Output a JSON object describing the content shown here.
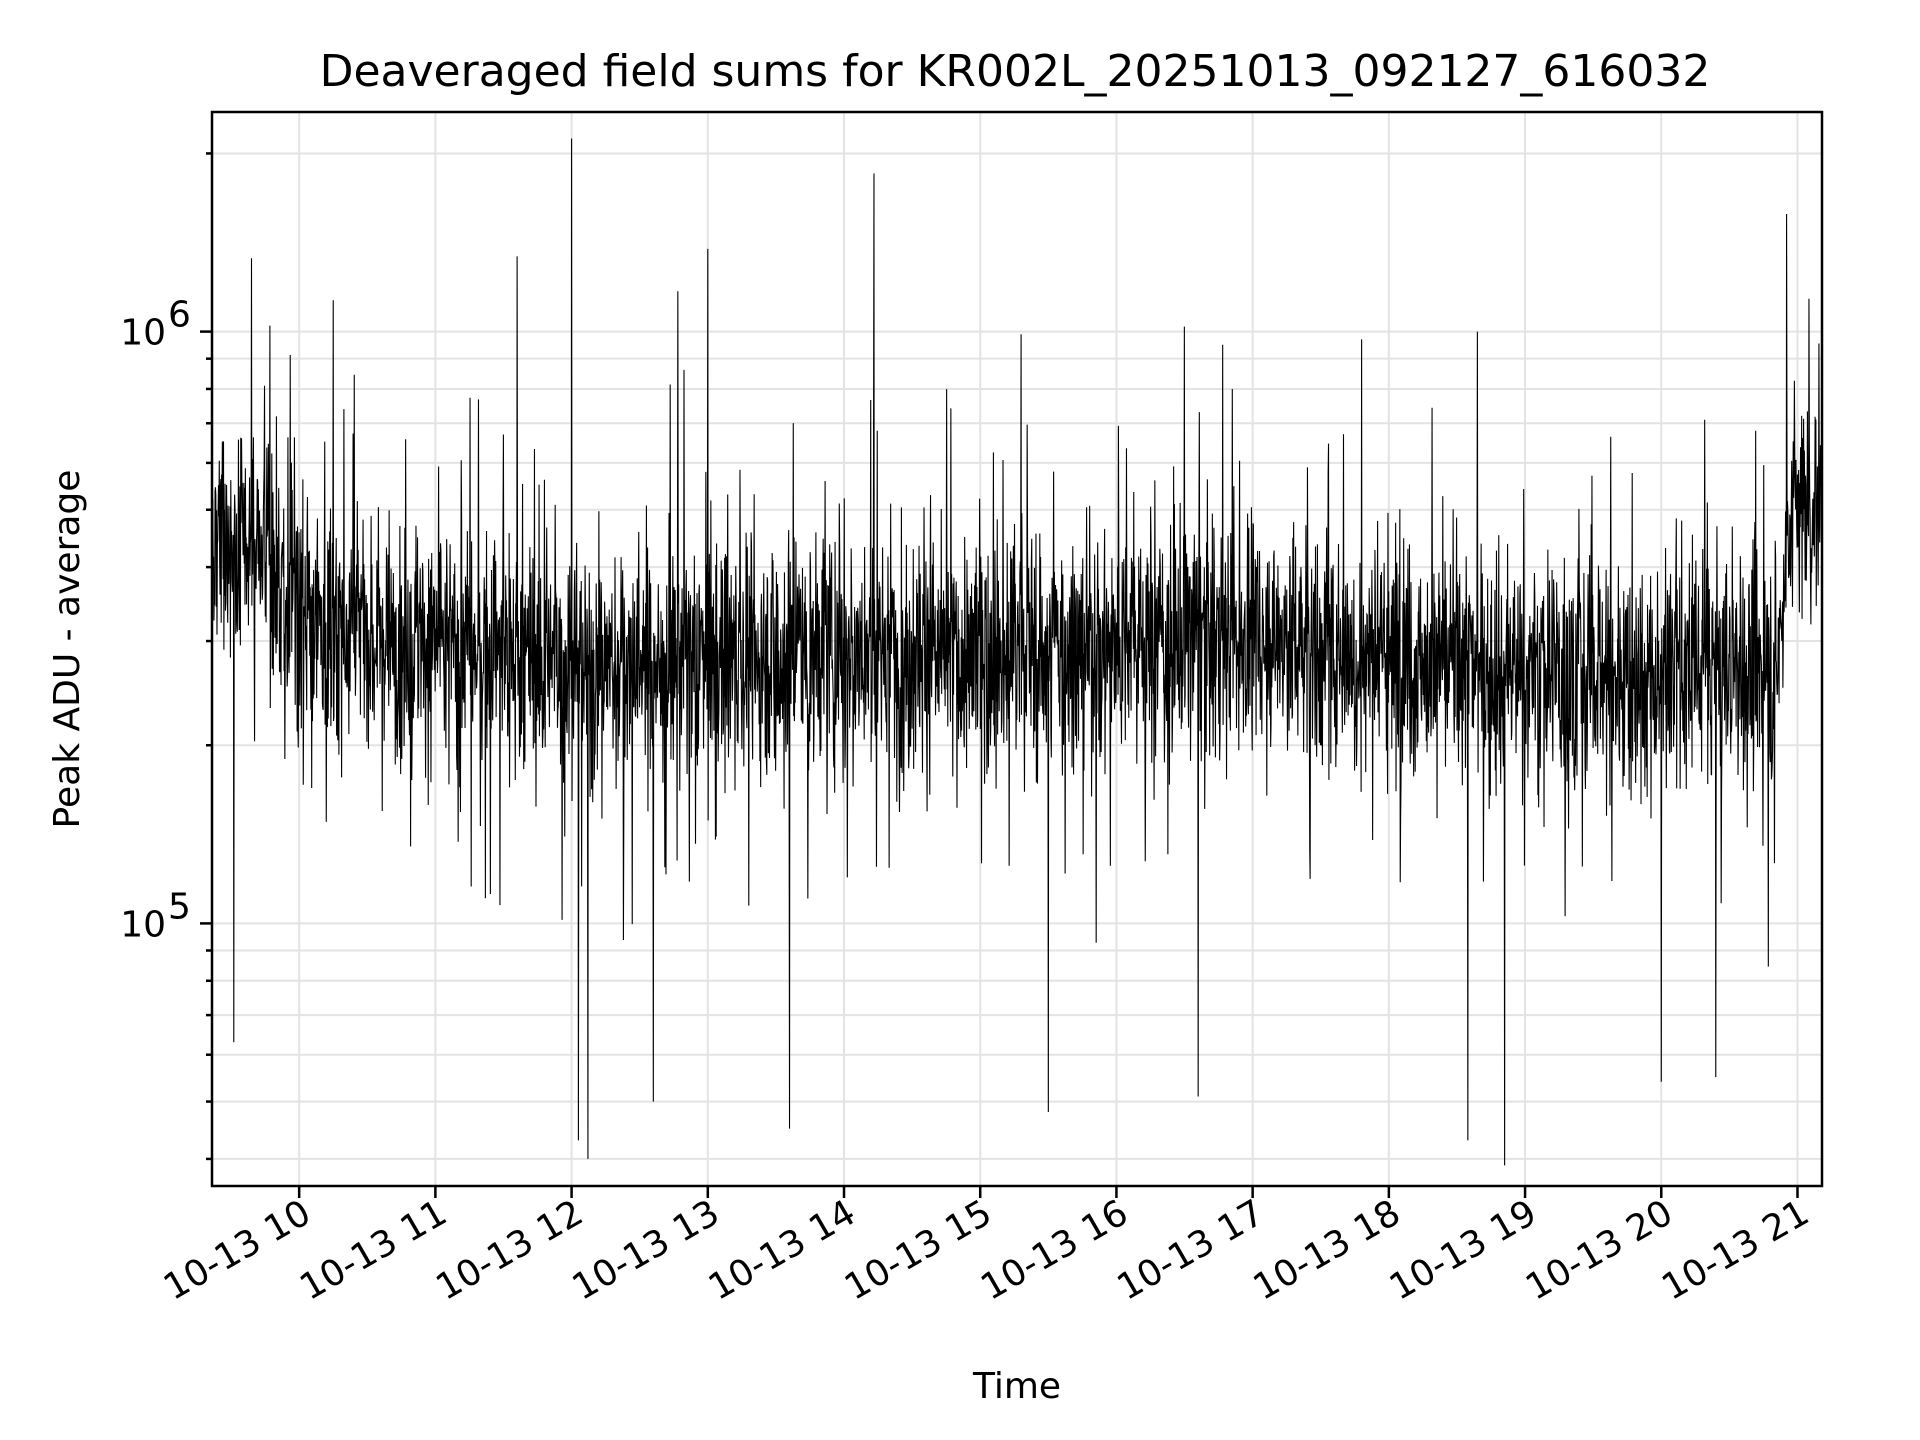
{
  "chart_data": {
    "type": "line",
    "title": "Deaveraged field sums for KR002L_20251013_092127_616032",
    "xlabel": "Time",
    "ylabel": "Peak ADU - average",
    "yscale": "log",
    "ylim": [
      36000,
      2350000
    ],
    "xlim_hours": [
      9.36,
      21.18
    ],
    "grid": true,
    "x_ticks": [
      {
        "hour": 10,
        "label": "10-13 10"
      },
      {
        "hour": 11,
        "label": "10-13 11"
      },
      {
        "hour": 12,
        "label": "10-13 12"
      },
      {
        "hour": 13,
        "label": "10-13 13"
      },
      {
        "hour": 14,
        "label": "10-13 14"
      },
      {
        "hour": 15,
        "label": "10-13 15"
      },
      {
        "hour": 16,
        "label": "10-13 16"
      },
      {
        "hour": 17,
        "label": "10-13 17"
      },
      {
        "hour": 18,
        "label": "10-13 18"
      },
      {
        "hour": 19,
        "label": "10-13 19"
      },
      {
        "hour": 20,
        "label": "10-13 20"
      },
      {
        "hour": 21,
        "label": "10-13 21"
      }
    ],
    "y_ticks": [
      {
        "value": 100000,
        "base": "10",
        "exp": "5"
      },
      {
        "value": 1000000,
        "base": "10",
        "exp": "6"
      }
    ],
    "series": [
      {
        "name": "deaveraged field sum",
        "color": "#000000",
        "baseline": [
          {
            "hour": 9.36,
            "value": 420000
          },
          {
            "hour": 9.7,
            "value": 460000
          },
          {
            "hour": 10.0,
            "value": 330000
          },
          {
            "hour": 11.0,
            "value": 300000
          },
          {
            "hour": 12.0,
            "value": 270000
          },
          {
            "hour": 13.0,
            "value": 280000
          },
          {
            "hour": 14.0,
            "value": 290000
          },
          {
            "hour": 15.0,
            "value": 280000
          },
          {
            "hour": 16.0,
            "value": 300000
          },
          {
            "hour": 17.0,
            "value": 310000
          },
          {
            "hour": 18.0,
            "value": 280000
          },
          {
            "hour": 19.0,
            "value": 270000
          },
          {
            "hour": 20.0,
            "value": 260000
          },
          {
            "hour": 20.85,
            "value": 270000
          },
          {
            "hour": 20.95,
            "value": 520000
          },
          {
            "hour": 21.18,
            "value": 500000
          }
        ],
        "peaks": [
          {
            "hour": 12.0,
            "value": 2120000
          },
          {
            "hour": 14.22,
            "value": 1850000
          },
          {
            "hour": 20.92,
            "value": 1580000
          },
          {
            "hour": 13.0,
            "value": 1380000
          },
          {
            "hour": 11.6,
            "value": 1340000
          },
          {
            "hour": 9.65,
            "value": 1330000
          },
          {
            "hour": 12.78,
            "value": 1170000
          },
          {
            "hour": 10.25,
            "value": 1130000
          },
          {
            "hour": 15.3,
            "value": 990000
          },
          {
            "hour": 18.65,
            "value": 1000000
          },
          {
            "hour": 17.8,
            "value": 970000
          },
          {
            "hour": 16.78,
            "value": 950000
          }
        ],
        "troughs": [
          {
            "hour": 12.12,
            "value": 40000
          },
          {
            "hour": 13.6,
            "value": 45000
          },
          {
            "hour": 15.5,
            "value": 48000
          },
          {
            "hour": 18.58,
            "value": 43000
          },
          {
            "hour": 18.85,
            "value": 39000
          },
          {
            "hour": 12.05,
            "value": 43000
          },
          {
            "hour": 9.52,
            "value": 63000
          },
          {
            "hour": 12.6,
            "value": 50000
          },
          {
            "hour": 16.6,
            "value": 51000
          },
          {
            "hour": 20.0,
            "value": 54000
          },
          {
            "hour": 20.4,
            "value": 55000
          }
        ]
      }
    ]
  }
}
